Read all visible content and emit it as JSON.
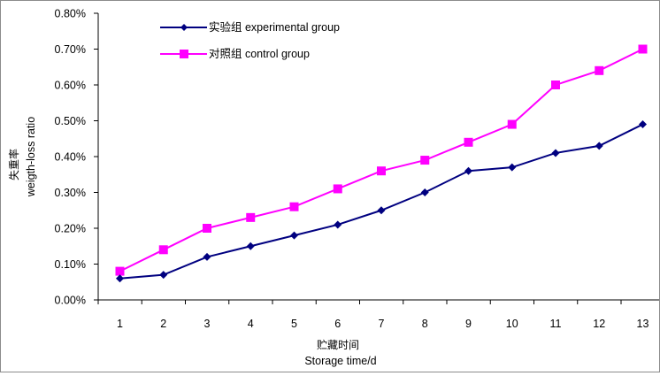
{
  "chart_data": {
    "type": "line",
    "title": "",
    "xlabel_zh": "贮藏时间",
    "xlabel": "Storage time/d",
    "ylabel_zh": "失重率",
    "ylabel": "weigth-loss ratio",
    "categories": [
      "1",
      "2",
      "3",
      "4",
      "5",
      "6",
      "7",
      "8",
      "9",
      "10",
      "11",
      "12",
      "13"
    ],
    "x": [
      1,
      2,
      3,
      4,
      5,
      6,
      7,
      8,
      9,
      10,
      11,
      12,
      13
    ],
    "ylim": [
      0,
      0.8
    ],
    "yticks": [
      0,
      0.1,
      0.2,
      0.3,
      0.4,
      0.5,
      0.6,
      0.7,
      0.8
    ],
    "ytick_labels": [
      "0.00%",
      "0.10%",
      "0.20%",
      "0.30%",
      "0.40%",
      "0.50%",
      "0.60%",
      "0.70%",
      "0.80%"
    ],
    "grid": false,
    "legend_position": "top-left",
    "series": [
      {
        "name": "实验组 experimental group",
        "marker": "diamond",
        "color": "#000080",
        "values": [
          0.06,
          0.07,
          0.12,
          0.15,
          0.18,
          0.21,
          0.25,
          0.3,
          0.36,
          0.37,
          0.41,
          0.43,
          0.49
        ]
      },
      {
        "name": "对照组 control group",
        "marker": "square",
        "color": "#ff00ff",
        "values": [
          0.08,
          0.14,
          0.2,
          0.23,
          0.26,
          0.31,
          0.36,
          0.39,
          0.44,
          0.49,
          0.6,
          0.64,
          0.7
        ]
      }
    ]
  }
}
